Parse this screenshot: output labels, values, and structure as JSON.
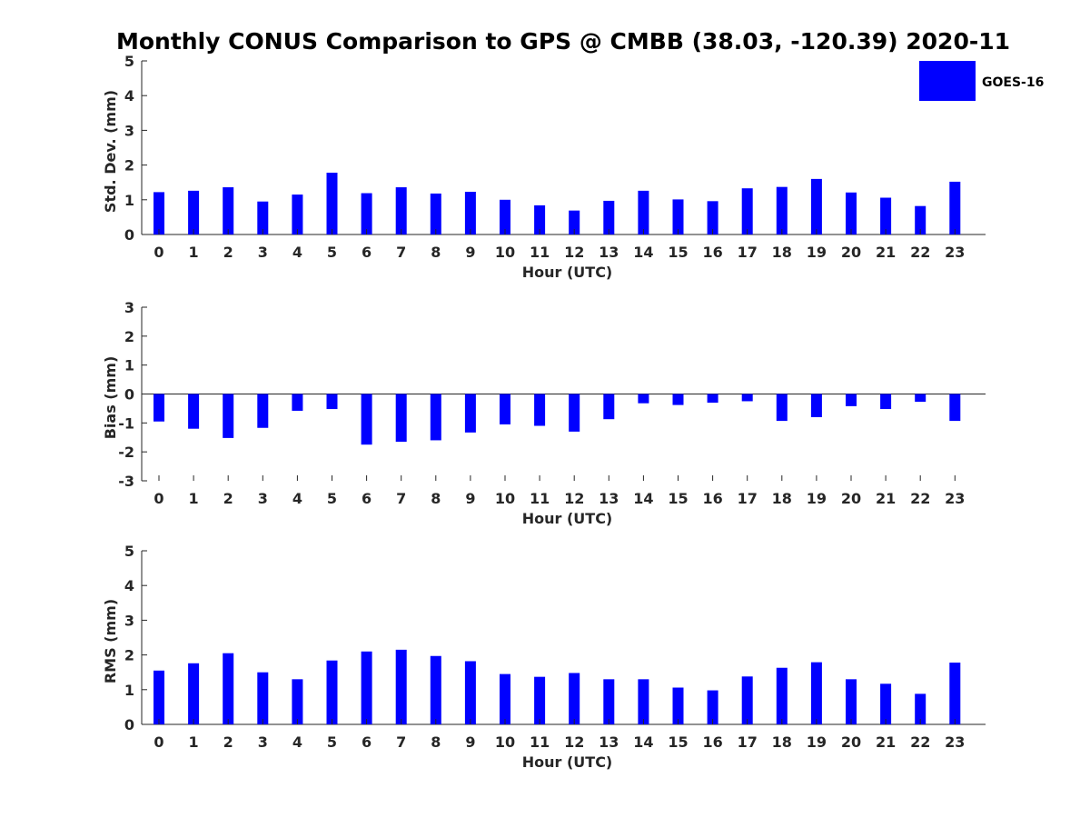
{
  "chart_data": {
    "title": "Monthly CONUS Comparison to GPS @ CMBB (38.03, -120.39) 2020-11",
    "legend": {
      "label": "GOES-16",
      "color": "#0000ff",
      "placement": "top-right"
    },
    "bar_color": "#0000ff",
    "panels": [
      {
        "type": "bar",
        "ylabel": "Std. Dev. (mm)",
        "xlabel": "Hour (UTC)",
        "ylim": [
          0,
          5
        ],
        "yticks": [
          "0",
          "1",
          "2",
          "3",
          "4",
          "5"
        ],
        "categories": [
          "0",
          "1",
          "2",
          "3",
          "4",
          "5",
          "6",
          "7",
          "8",
          "9",
          "10",
          "11",
          "12",
          "13",
          "14",
          "15",
          "16",
          "17",
          "18",
          "19",
          "20",
          "21",
          "22",
          "23"
        ],
        "values": [
          1.22,
          1.26,
          1.36,
          0.95,
          1.15,
          1.78,
          1.19,
          1.36,
          1.18,
          1.23,
          1.0,
          0.84,
          0.69,
          0.97,
          1.26,
          1.01,
          0.96,
          1.33,
          1.37,
          1.6,
          1.21,
          1.06,
          0.82,
          1.52
        ]
      },
      {
        "type": "bar",
        "ylabel": "Bias (mm)",
        "xlabel": "Hour (UTC)",
        "ylim": [
          -3,
          3
        ],
        "yticks": [
          "-3",
          "-2",
          "-1",
          "0",
          "1",
          "2",
          "3"
        ],
        "categories": [
          "0",
          "1",
          "2",
          "3",
          "4",
          "5",
          "6",
          "7",
          "8",
          "9",
          "10",
          "11",
          "12",
          "13",
          "14",
          "15",
          "16",
          "17",
          "18",
          "19",
          "20",
          "21",
          "22",
          "23"
        ],
        "values": [
          -0.95,
          -1.2,
          -1.52,
          -1.17,
          -0.58,
          -0.52,
          -1.75,
          -1.65,
          -1.6,
          -1.33,
          -1.05,
          -1.1,
          -1.3,
          -0.87,
          -0.32,
          -0.38,
          -0.3,
          -0.25,
          -0.93,
          -0.8,
          -0.42,
          -0.52,
          -0.27,
          -0.93
        ]
      },
      {
        "type": "bar",
        "ylabel": "RMS (mm)",
        "xlabel": "Hour (UTC)",
        "ylim": [
          0,
          5
        ],
        "yticks": [
          "0",
          "1",
          "2",
          "3",
          "4",
          "5"
        ],
        "categories": [
          "0",
          "1",
          "2",
          "3",
          "4",
          "5",
          "6",
          "7",
          "8",
          "9",
          "10",
          "11",
          "12",
          "13",
          "14",
          "15",
          "16",
          "17",
          "18",
          "19",
          "20",
          "21",
          "22",
          "23"
        ],
        "values": [
          1.55,
          1.76,
          2.05,
          1.5,
          1.3,
          1.84,
          2.1,
          2.15,
          1.97,
          1.82,
          1.45,
          1.37,
          1.48,
          1.3,
          1.3,
          1.06,
          0.98,
          1.38,
          1.63,
          1.79,
          1.3,
          1.17,
          0.88,
          1.78
        ]
      }
    ]
  }
}
